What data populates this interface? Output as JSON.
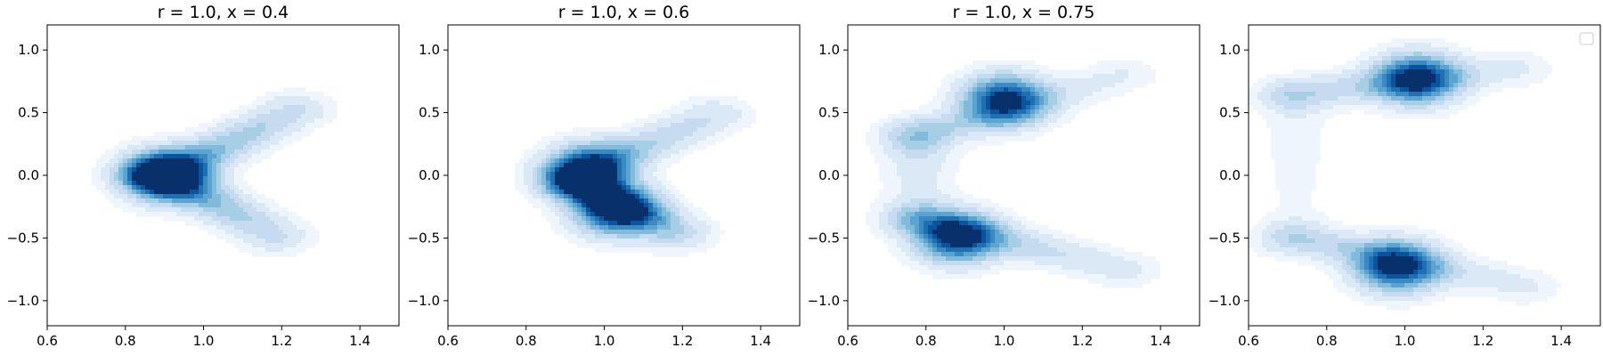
{
  "figure": {
    "background": "#ffffff"
  },
  "chart_data": [
    {
      "type": "kde-contour",
      "title": "r = 1.0, x = 0.4",
      "xlim": [
        0.6,
        1.5
      ],
      "ylim": [
        -1.2,
        1.2
      ],
      "xticks": [
        0.6,
        0.8,
        1.0,
        1.2,
        1.4
      ],
      "yticks": [
        -1.0,
        -0.5,
        0.0,
        0.5,
        1.0
      ],
      "xtick_labels": [
        "0.6",
        "0.8",
        "1.0",
        "1.2",
        "1.4"
      ],
      "ytick_labels": [
        "−1.0",
        "−0.5",
        "0.0",
        "0.5",
        "1.0"
      ],
      "colormap": "Blues",
      "legend": null,
      "density_shape": "chevron",
      "modes": [
        {
          "x": 0.9,
          "y": 0.0,
          "density": 1.0
        }
      ],
      "arms": [
        {
          "from": [
            0.9,
            0.0
          ],
          "to": [
            1.23,
            0.52
          ],
          "peak": 0.55
        },
        {
          "from": [
            0.9,
            0.0
          ],
          "to": [
            1.18,
            -0.48
          ],
          "peak": 0.55
        }
      ]
    },
    {
      "type": "kde-contour",
      "title": "r = 1.0, x = 0.6",
      "xlim": [
        0.6,
        1.5
      ],
      "ylim": [
        -1.2,
        1.2
      ],
      "xticks": [
        0.6,
        0.8,
        1.0,
        1.2,
        1.4
      ],
      "yticks": [
        -1.0,
        -0.5,
        0.0,
        0.5,
        1.0
      ],
      "xtick_labels": [
        "0.6",
        "0.8",
        "1.0",
        "1.2",
        "1.4"
      ],
      "ytick_labels": [
        "−1.0",
        "−0.5",
        "0.0",
        "0.5",
        "1.0"
      ],
      "colormap": "Blues",
      "legend": null,
      "density_shape": "chevron",
      "modes": [
        {
          "x": 0.96,
          "y": 0.05,
          "density": 0.9
        },
        {
          "x": 1.03,
          "y": -0.28,
          "density": 1.0
        }
      ],
      "arms": [
        {
          "from": [
            0.92,
            0.0
          ],
          "to": [
            1.28,
            0.48
          ],
          "peak": 0.45
        },
        {
          "from": [
            0.95,
            -0.1
          ],
          "to": [
            1.18,
            -0.45
          ],
          "peak": 0.7
        }
      ]
    },
    {
      "type": "kde-contour",
      "title": "r = 1.0, x = 0.75",
      "xlim": [
        0.6,
        1.5
      ],
      "ylim": [
        -1.2,
        1.2
      ],
      "xticks": [
        0.6,
        0.8,
        1.0,
        1.2,
        1.4
      ],
      "yticks": [
        -1.0,
        -0.5,
        0.0,
        0.5,
        1.0
      ],
      "xtick_labels": [
        "0.6",
        "0.8",
        "1.0",
        "1.2",
        "1.4"
      ],
      "ytick_labels": [
        "−1.0",
        "−0.5",
        "0.0",
        "0.5",
        "1.0"
      ],
      "colormap": "Blues",
      "legend": null,
      "density_shape": "bimodal-arc",
      "modes": [
        {
          "x": 1.0,
          "y": 0.6,
          "density": 1.0
        },
        {
          "x": 0.88,
          "y": -0.5,
          "density": 1.0
        }
      ],
      "arms": [
        {
          "from": [
            0.78,
            0.3
          ],
          "to": [
            1.3,
            0.8
          ],
          "peak": 0.25
        },
        {
          "from": [
            0.78,
            -0.35
          ],
          "to": [
            1.3,
            -0.75
          ],
          "peak": 0.35
        },
        {
          "from": [
            0.78,
            0.35
          ],
          "to": [
            0.78,
            -0.35
          ],
          "peak": 0.2
        }
      ]
    },
    {
      "type": "kde-contour",
      "title": "",
      "xlim": [
        0.6,
        1.5
      ],
      "ylim": [
        -1.2,
        1.2
      ],
      "xticks": [
        0.6,
        0.8,
        1.0,
        1.2,
        1.4
      ],
      "yticks": [
        -1.0,
        -0.5,
        0.0,
        0.5,
        1.0
      ],
      "xtick_labels": [
        "0.6",
        "0.8",
        "1.0",
        "1.2",
        "1.4"
      ],
      "ytick_labels": [
        "−1.0",
        "−0.5",
        "0.0",
        "0.5",
        "1.0"
      ],
      "colormap": "Blues",
      "legend": "upper right (empty)",
      "density_shape": "bimodal-arc",
      "modes": [
        {
          "x": 1.03,
          "y": 0.77,
          "density": 1.0
        },
        {
          "x": 0.98,
          "y": -0.73,
          "density": 1.0
        }
      ],
      "arms": [
        {
          "from": [
            0.72,
            0.65
          ],
          "to": [
            1.28,
            0.85
          ],
          "peak": 0.3
        },
        {
          "from": [
            0.72,
            -0.5
          ],
          "to": [
            1.3,
            -0.88
          ],
          "peak": 0.3
        },
        {
          "from": [
            0.72,
            0.55
          ],
          "to": [
            0.72,
            -0.55
          ],
          "peak": 0.08
        }
      ]
    }
  ]
}
